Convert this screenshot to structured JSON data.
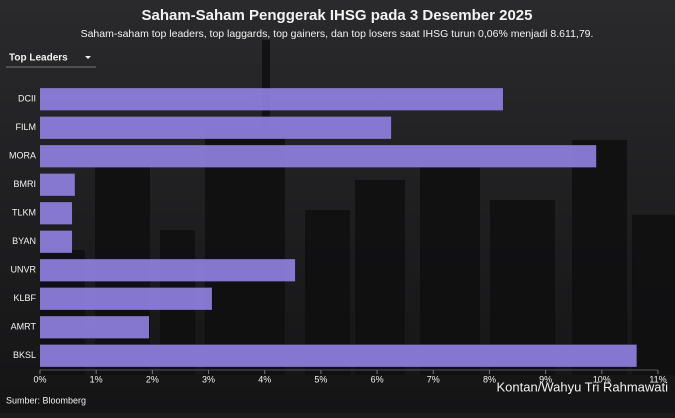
{
  "title": "Saham-Saham Penggerak IHSG pada 3 Desember 2025",
  "subtitle": "Saham-saham top leaders, top laggards, top gainers, dan top losers saat IHSG turun 0,06% menjadi 8.611,79.",
  "dropdown": "Top Leaders",
  "source": "Sumber: Bloomberg",
  "credit": "Kontan/Wahyu Tri Rahmawati",
  "chart_data": {
    "type": "bar",
    "orientation": "horizontal",
    "categories": [
      "DCII",
      "FILM",
      "MORA",
      "BMRI",
      "TLKM",
      "BYAN",
      "UNVR",
      "KLBF",
      "AMRT",
      "BKSL"
    ],
    "values": [
      8.24,
      6.25,
      9.9,
      0.62,
      0.57,
      0.57,
      4.54,
      3.06,
      1.94,
      10.62
    ],
    "color": "#8f80e0",
    "xlim": [
      0,
      11
    ],
    "xticks": [
      {
        "value": 0,
        "label": "0%"
      },
      {
        "value": 1,
        "label": "1%"
      },
      {
        "value": 2,
        "label": "2%"
      },
      {
        "value": 3,
        "label": "3%"
      },
      {
        "value": 4,
        "label": "4%"
      },
      {
        "value": 5,
        "label": "5%"
      },
      {
        "value": 6,
        "label": "6%"
      },
      {
        "value": 7,
        "label": "7%"
      },
      {
        "value": 8,
        "label": "8%"
      },
      {
        "value": 9,
        "label": "9%"
      },
      {
        "value": 10,
        "label": "10%"
      },
      {
        "value": 11,
        "label": "11%"
      }
    ],
    "grid": false
  }
}
